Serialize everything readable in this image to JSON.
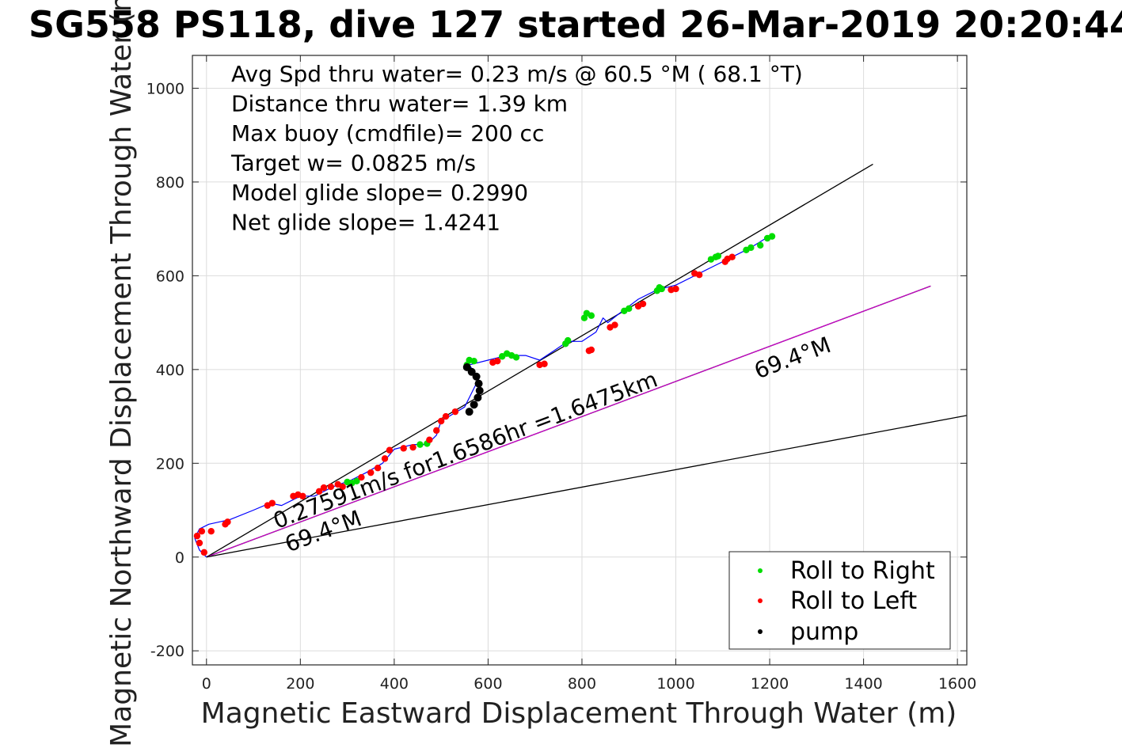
{
  "chart_data": {
    "type": "line",
    "title": "SG558 PS118, dive 127 started 26-Mar-2019 20:20:44",
    "xlabel": "Magnetic Eastward Displacement Through Water (m)",
    "ylabel": "Magnetic Northward Displacement Through Water (m)",
    "xlim": [
      -30,
      1620
    ],
    "ylim": [
      -230,
      1070
    ],
    "xticks": [
      0,
      200,
      400,
      600,
      800,
      1000,
      1200,
      1400,
      1600
    ],
    "yticks": [
      -200,
      0,
      200,
      400,
      600,
      800,
      1000
    ],
    "grid": true,
    "legend_position": "bottom-right",
    "stats": [
      "Avg Spd thru water=  0.23 m/s @  60.5 °M ( 68.1 °T)",
      "Distance thru water=  1.39 km",
      "Max buoy (cmdfile)= 200 cc",
      "Target w= 0.0825 m/s",
      "Model glide slope= 0.2990",
      "Net glide slope= 1.4241"
    ],
    "annotations": [
      {
        "text": "0.27591m/s for1.6586hr =1.6475km",
        "x": 150,
        "y": 60,
        "angle_deg": 20.6
      },
      {
        "text": "69.4°M",
        "x": 175,
        "y": 10,
        "angle_deg": 20.6
      },
      {
        "text": "69.4°M",
        "x": 1175,
        "y": 380,
        "angle_deg": 20.6
      }
    ],
    "lines": [
      {
        "role": "net-track",
        "color": "#000000",
        "points": [
          [
            0,
            0
          ],
          [
            1420,
            838
          ]
        ]
      },
      {
        "role": "heading",
        "color": "#000000",
        "points": [
          [
            0,
            0
          ],
          [
            1543,
            578
          ]
        ]
      },
      {
        "role": "heading-magenta",
        "color": "#cc00cc",
        "points": [
          [
            0,
            0
          ],
          [
            1543,
            578
          ]
        ]
      },
      {
        "role": "current",
        "color": "#000000",
        "points": [
          [
            0,
            0
          ],
          [
            1620,
            302
          ]
        ]
      }
    ],
    "track": {
      "color": "#0000ff",
      "x": [
        0,
        -15,
        -25,
        -15,
        5,
        50,
        100,
        135,
        160,
        200,
        230,
        270,
        310,
        340,
        375,
        400,
        440,
        470,
        490,
        500,
        550,
        570,
        580,
        560,
        600,
        640,
        680,
        710,
        740,
        770,
        800,
        830,
        845,
        855,
        880,
        920,
        960,
        1000,
        1040,
        1080,
        1120,
        1160,
        1200
      ],
      "y": [
        0,
        15,
        40,
        60,
        70,
        80,
        100,
        115,
        110,
        130,
        130,
        150,
        165,
        180,
        200,
        230,
        240,
        240,
        260,
        290,
        320,
        360,
        380,
        410,
        420,
        430,
        430,
        420,
        440,
        460,
        460,
        480,
        510,
        500,
        520,
        550,
        570,
        580,
        600,
        620,
        640,
        660,
        685
      ]
    },
    "roll_right": {
      "name": "Roll to Right",
      "color": "#00dd00",
      "x": [
        300,
        310,
        320,
        455,
        470,
        555,
        560,
        570,
        630,
        640,
        650,
        660,
        765,
        770,
        805,
        810,
        820,
        890,
        900,
        960,
        965,
        970,
        1075,
        1085,
        1090,
        1150,
        1160,
        1180,
        1195,
        1205
      ],
      "y": [
        160,
        158,
        162,
        240,
        242,
        410,
        420,
        418,
        428,
        434,
        430,
        426,
        455,
        462,
        510,
        520,
        515,
        525,
        530,
        568,
        575,
        572,
        635,
        640,
        642,
        655,
        660,
        665,
        680,
        684
      ]
    },
    "roll_left": {
      "name": "Roll to Left",
      "color": "#ff0000",
      "x": [
        -5,
        -15,
        -20,
        -10,
        10,
        40,
        45,
        130,
        140,
        185,
        195,
        205,
        240,
        250,
        265,
        280,
        290,
        330,
        350,
        365,
        380,
        390,
        420,
        440,
        475,
        490,
        500,
        510,
        530,
        610,
        620,
        710,
        720,
        815,
        820,
        860,
        870,
        920,
        930,
        990,
        1000,
        1040,
        1050,
        1105,
        1110,
        1120
      ],
      "y": [
        10,
        30,
        45,
        55,
        55,
        70,
        75,
        110,
        115,
        130,
        133,
        130,
        140,
        148,
        150,
        155,
        150,
        170,
        180,
        190,
        210,
        228,
        232,
        234,
        250,
        270,
        290,
        300,
        310,
        415,
        418,
        410,
        412,
        440,
        442,
        490,
        495,
        535,
        540,
        570,
        572,
        605,
        602,
        630,
        636,
        640
      ]
    },
    "pump": {
      "name": "pump",
      "color": "#000000",
      "x": [
        555,
        565,
        575,
        580,
        582,
        578,
        570,
        560
      ],
      "y": [
        405,
        395,
        385,
        370,
        355,
        340,
        325,
        310
      ]
    }
  }
}
